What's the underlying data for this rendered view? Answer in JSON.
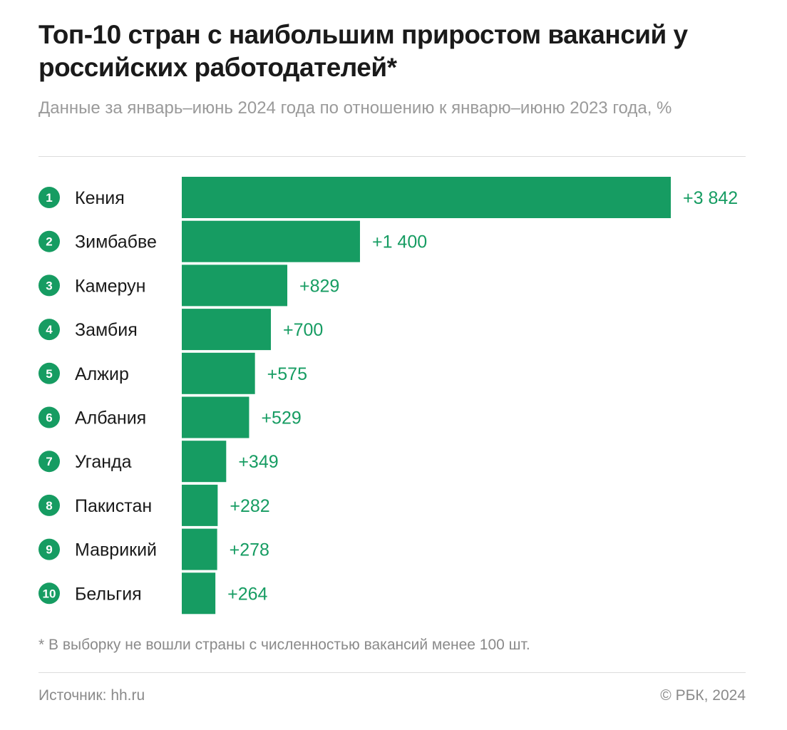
{
  "title": "Топ-10 стран с наибольшим приростом вакансий у российских работодателей*",
  "subtitle": "Данные за январь–июнь 2024 года по отношению к январю–июню 2023 года, %",
  "footnote": "* В выборку не вошли страны с численностью вакансий менее 100 шт.",
  "source": "Источник: hh.ru",
  "copyright": "© РБК, 2024",
  "colors": {
    "bar": "#169c62",
    "label": "#169c62",
    "rank_badge": "#169c62"
  },
  "chart_data": {
    "type": "bar",
    "orientation": "horizontal",
    "title": "Топ-10 стран с наибольшим приростом вакансий у российских работодателей*",
    "subtitle": "Данные за январь–июнь 2024 года по отношению к январю–июню 2023 года, %",
    "ranks": [
      "1",
      "2",
      "3",
      "4",
      "5",
      "6",
      "7",
      "8",
      "9",
      "10"
    ],
    "categories": [
      "Кения",
      "Зимбабве",
      "Камерун",
      "Замбия",
      "Алжир",
      "Албания",
      "Уганда",
      "Пакистан",
      "Маврикий",
      "Бельгия"
    ],
    "values": [
      3842,
      1400,
      829,
      700,
      575,
      529,
      349,
      282,
      278,
      264
    ],
    "value_labels": [
      "+3 842",
      "+1 400",
      "+829",
      "+700",
      "+575",
      "+529",
      "+349",
      "+282",
      "+278",
      "+264"
    ],
    "grid": false,
    "legend": "none"
  }
}
